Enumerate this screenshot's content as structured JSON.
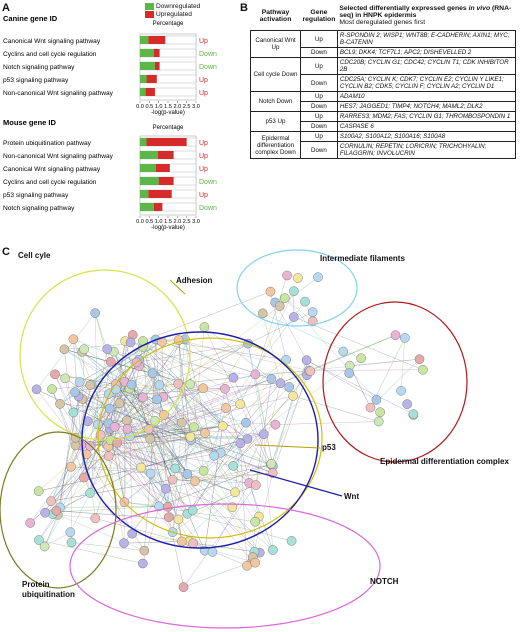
{
  "panels": {
    "a": "A",
    "b": "B",
    "c": "C"
  },
  "panel_a": {
    "legend": {
      "down": "Downregulated",
      "up": "Upregulated",
      "down_color": "#5bb747",
      "up_color": "#d52b2b"
    },
    "axis_title": "Percentage",
    "xlabel": "-log(p-value)",
    "ticks": [
      "0.0",
      "0.5",
      "1.0",
      "1.5",
      "2.0",
      "2.5",
      "3.0"
    ],
    "canine": {
      "title": "Canine gene ID",
      "rows": [
        {
          "label": "Canonical Wnt signaling pathway",
          "down": 0.45,
          "up": 0.9,
          "reg": "Up"
        },
        {
          "label": "Cyclins and cell cycle regulation",
          "down": 0.75,
          "up": 0.3,
          "reg": "Down"
        },
        {
          "label": "Notch signaling pathway",
          "down": 0.8,
          "up": 0.25,
          "reg": "Down"
        },
        {
          "label": "p53 signaling pathway",
          "down": 0.35,
          "up": 0.55,
          "reg": "Up"
        },
        {
          "label": "Non-canonical Wnt signaling pathway",
          "down": 0.3,
          "up": 0.5,
          "reg": "Up"
        }
      ]
    },
    "mouse": {
      "title": "Mouse gene ID",
      "rows": [
        {
          "label": "Protein ubiquitination pathway",
          "down": 0.35,
          "up": 2.15,
          "reg": "Up"
        },
        {
          "label": "Non-canonical Wnt signaling pathway",
          "down": 0.95,
          "up": 0.85,
          "reg": "Up"
        },
        {
          "label": "Canonical Wnt signaling pathway",
          "down": 0.85,
          "up": 0.75,
          "reg": "Up"
        },
        {
          "label": "Cyclins and cell cycle regulation",
          "down": 1.0,
          "up": 0.8,
          "reg": "Down"
        },
        {
          "label": "p53 signaling pathway",
          "down": 0.45,
          "up": 1.25,
          "reg": "Up"
        },
        {
          "label": "Notch signaling pathway",
          "down": 0.75,
          "up": 0.45,
          "reg": "Down"
        }
      ]
    }
  },
  "panel_b": {
    "head1": "Pathway activation",
    "head2": "Gene regulation",
    "head3_a": "Selected differentially expressed genes ",
    "head3_b": "in vivo",
    "head3_c": " (RNA-seq) in HNPK epidermis",
    "head3_sub": "Most deregulated genes first",
    "groups": [
      {
        "pathway": "Canonical Wnt Up",
        "rows": [
          {
            "reg": "Up",
            "genes": "R-SPONDIN 2; WISP1; WNT8B; E-CADHERIN; AXIN1; MYC; B-CATENIN"
          },
          {
            "reg": "Down",
            "genes": "BCL9; DKK4; TCF7L1; APC2; DISHEVELLED 2"
          }
        ]
      },
      {
        "pathway": "Cell cycle Down",
        "rows": [
          {
            "reg": "Up",
            "genes": "CDC20B; CYCLIN G1; CDC42; CYCLIN T1; CDK INHIBITOR 2B"
          },
          {
            "reg": "Down",
            "genes": "CDC25A; CYCLIN K; CDK7; CYCLIN E2; CYCLIN Y LIKE1; CYCLIN B2; CDK5; CYCLIN F; CYCLIN A2; CYCLIN D1"
          }
        ]
      },
      {
        "pathway": "Notch Down",
        "rows": [
          {
            "reg": "Up",
            "genes": "ADAM10"
          },
          {
            "reg": "Down",
            "genes": "HES7; JAGGED1; TIMP4; NOTCH4; MAML2; DLK2"
          }
        ]
      },
      {
        "pathway": "p53 Up",
        "rows": [
          {
            "reg": "Up",
            "genes": "RARRES3; MDM2; FAS; CYCLIN G1; THROMBOSPONDIN 1"
          },
          {
            "reg": "Down",
            "genes": "CASPASE 6"
          }
        ]
      },
      {
        "pathway": "Epidermal differentiation complex Down",
        "rows": [
          {
            "reg": "Up",
            "genes": "S100A2; S100A12; S100A16; S100A8"
          },
          {
            "reg": "Down",
            "genes": "CORNULIN; REPETIN; LORICRIN; TRICHOHYALIN; FILAGGRIN; INVOLUCRIN"
          }
        ]
      }
    ]
  },
  "panel_c": {
    "labels": {
      "cell_cycle": "Cell cyle",
      "adhesion": "Adhesion",
      "intermediate": "Intermediate filaments",
      "p53": "p53",
      "epidermal": "Epidermal differentiation complex",
      "wnt": "Wnt",
      "protein": "Protein ubiquitination",
      "notch": "NOTCH"
    },
    "colors": {
      "cell_cycle": "#d7e34a",
      "adhesion": "#d0c000",
      "intermediate": "#7fd3ee",
      "epidermal": "#b01818",
      "wnt": "#1c1caa",
      "protein": "#7a7a20",
      "notch": "#d86ad8"
    }
  }
}
